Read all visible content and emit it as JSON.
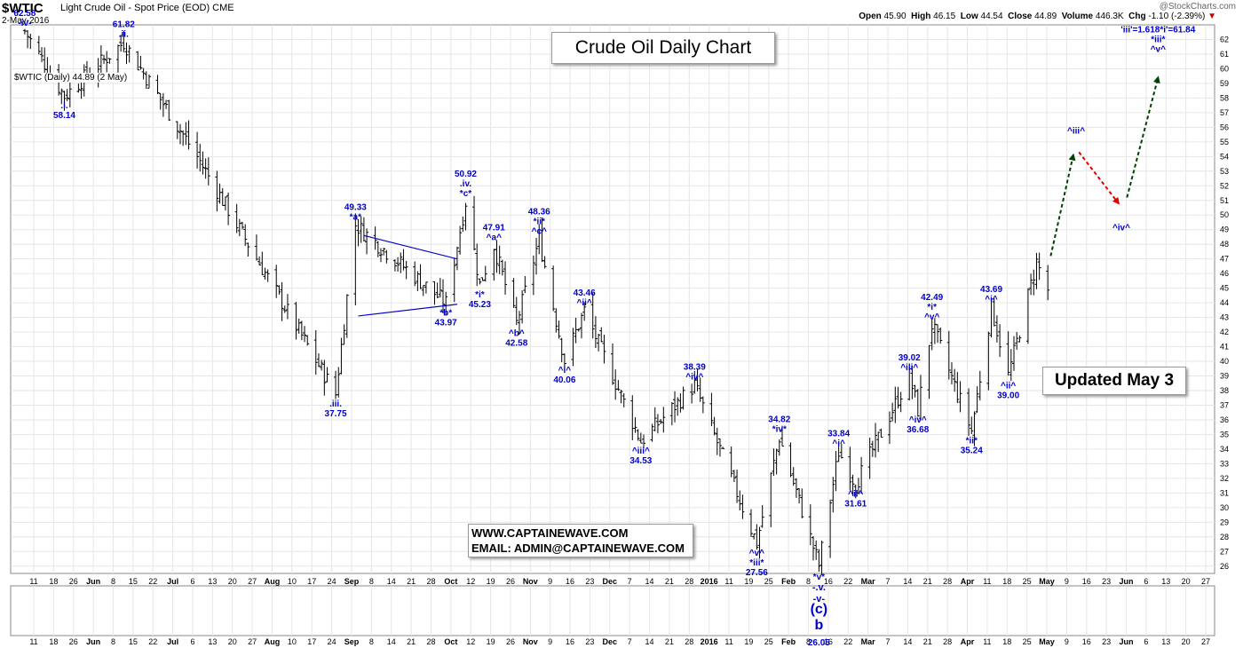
{
  "header": {
    "symbol": "$WTIC",
    "description": "Light Crude Oil - Spot Price (EOD)  CME",
    "date": "2-May-2016",
    "open_label": "Open",
    "open": "45.90",
    "high_label": "High",
    "high": "46.15",
    "low_label": "Low",
    "low": "44.54",
    "close_label": "Close",
    "close": "44.89",
    "volume_label": "Volume",
    "volume": "446.3K",
    "chg_label": "Chg",
    "chg": "-1.10 (-2.39%)",
    "watermark": "@StockCharts.com",
    "legend": "$WTIC (Daily) 44.89 (2 May)"
  },
  "boxes": {
    "title": "Crude Oil Daily Chart",
    "updated": "Updated May 3",
    "website": "WWW.CAPTAINEWAVE.COM",
    "email": "EMAIL: ADMIN@CAPTAINEWAVE.COM"
  },
  "colors": {
    "bars": "#000000",
    "annotation": "#0000cc",
    "up_arrow": "#004000",
    "down_arrow": "#e00000",
    "grid": "#e6e6e6"
  },
  "chart_data": {
    "type": "ohlc",
    "title": "Crude Oil Daily Chart",
    "ylim": [
      25.5,
      63
    ],
    "y_ticks": [
      26,
      27,
      28,
      29,
      30,
      31,
      32,
      33,
      34,
      35,
      36,
      37,
      38,
      39,
      40,
      41,
      42,
      43,
      44,
      45,
      46,
      47,
      48,
      49,
      50,
      51,
      52,
      53,
      54,
      55,
      56,
      57,
      58,
      59,
      60,
      61,
      62
    ],
    "x_ticks": [
      "11",
      "18",
      "26",
      "Jun",
      "8",
      "15",
      "22",
      "Jul",
      "6",
      "13",
      "20",
      "27",
      "Aug",
      "10",
      "17",
      "24",
      "Sep",
      "8",
      "14",
      "21",
      "28",
      "Oct",
      "12",
      "19",
      "26",
      "Nov",
      "9",
      "16",
      "23",
      "Dec",
      "7",
      "14",
      "21",
      "28",
      "2016",
      "11",
      "19",
      "25",
      "Feb",
      "8",
      "16",
      "22",
      "Mar",
      "7",
      "14",
      "21",
      "28",
      "Apr",
      "11",
      "18",
      "25",
      "May",
      "9",
      "16",
      "23",
      "Jun",
      "6",
      "13",
      "20",
      "27"
    ],
    "last_bar": {
      "date": "2-May-2016",
      "open": 45.9,
      "high": 46.15,
      "low": 44.54,
      "close": 44.89
    },
    "pivots": [
      {
        "x": "2015-05-06",
        "y": 62.58
      },
      {
        "x": "2015-05-20",
        "y": 58.14
      },
      {
        "x": "2015-06-10",
        "y": 61.82
      },
      {
        "x": "2015-07-06",
        "y": 54.0
      },
      {
        "x": "2015-08-24",
        "y": 37.75
      },
      {
        "x": "2015-08-31",
        "y": 49.33
      },
      {
        "x": "2015-10-02",
        "y": 43.97
      },
      {
        "x": "2015-10-09",
        "y": 50.92
      },
      {
        "x": "2015-10-14",
        "y": 45.23
      },
      {
        "x": "2015-10-19",
        "y": 47.91
      },
      {
        "x": "2015-10-27",
        "y": 42.58
      },
      {
        "x": "2015-11-04",
        "y": 48.36
      },
      {
        "x": "2015-11-13",
        "y": 40.06
      },
      {
        "x": "2015-11-20",
        "y": 43.46
      },
      {
        "x": "2015-12-10",
        "y": 34.53
      },
      {
        "x": "2015-12-29",
        "y": 38.39
      },
      {
        "x": "2016-01-20",
        "y": 27.56
      },
      {
        "x": "2016-01-28",
        "y": 34.82
      },
      {
        "x": "2016-02-11",
        "y": 26.05
      },
      {
        "x": "2016-02-18",
        "y": 33.84
      },
      {
        "x": "2016-02-24",
        "y": 31.61
      },
      {
        "x": "2016-03-14",
        "y": 39.02
      },
      {
        "x": "2016-03-17",
        "y": 36.68
      },
      {
        "x": "2016-03-22",
        "y": 42.49
      },
      {
        "x": "2016-04-05",
        "y": 35.24
      },
      {
        "x": "2016-04-12",
        "y": 43.69
      },
      {
        "x": "2016-04-18",
        "y": 39.0
      },
      {
        "x": "2016-04-28",
        "y": 46.78
      },
      {
        "x": "2016-05-02",
        "y": 44.89
      }
    ],
    "triangle": {
      "upper": [
        {
          "x": "2015-09-03",
          "y": 48.6
        },
        {
          "x": "2015-10-06",
          "y": 47.0
        }
      ],
      "lower": [
        {
          "x": "2015-09-01",
          "y": 43.1
        },
        {
          "x": "2015-10-06",
          "y": 43.9
        }
      ]
    },
    "projection": [
      {
        "x": "2016-05-03",
        "y": 47.2
      },
      {
        "x": "2016-05-11",
        "y": 54.1
      },
      {
        "x": "2016-05-13",
        "y": 54.3
      },
      {
        "x": "2016-05-27",
        "y": 50.8
      },
      {
        "x": "2016-05-30",
        "y": 51.2
      },
      {
        "x": "2016-06-10",
        "y": 59.4
      }
    ],
    "annotations": [
      {
        "x": "2015-05-06",
        "y": 62.58,
        "lines": [
          "62.58",
          "-iv-"
        ],
        "pos": "above"
      },
      {
        "x": "2015-05-20",
        "y": 58.14,
        "lines": [
          ".i.",
          "58.14"
        ],
        "pos": "below"
      },
      {
        "x": "2015-06-10",
        "y": 61.82,
        "lines": [
          "61.82",
          ".ii."
        ],
        "pos": "above"
      },
      {
        "x": "2015-08-24",
        "y": 37.75,
        "lines": [
          ".iii.",
          "37.75"
        ],
        "pos": "below"
      },
      {
        "x": "2015-08-31",
        "y": 49.33,
        "lines": [
          "49.33",
          "*a*"
        ],
        "pos": "above"
      },
      {
        "x": "2015-10-02",
        "y": 43.97,
        "lines": [
          "*b*",
          "43.97"
        ],
        "pos": "below"
      },
      {
        "x": "2015-10-09",
        "y": 50.92,
        "lines": [
          "50.92",
          ".iv.",
          "*c*"
        ],
        "pos": "above"
      },
      {
        "x": "2015-10-14",
        "y": 45.23,
        "lines": [
          "*i*",
          "45.23"
        ],
        "pos": "below"
      },
      {
        "x": "2015-10-19",
        "y": 47.91,
        "lines": [
          "47.91",
          "^a^"
        ],
        "pos": "above"
      },
      {
        "x": "2015-10-27",
        "y": 42.58,
        "lines": [
          "^b^",
          "42.58"
        ],
        "pos": "below"
      },
      {
        "x": "2015-11-04",
        "y": 48.36,
        "lines": [
          "48.36",
          "*ii*",
          "^c^"
        ],
        "pos": "above"
      },
      {
        "x": "2015-11-13",
        "y": 40.06,
        "lines": [
          "^i^",
          "40.06"
        ],
        "pos": "below"
      },
      {
        "x": "2015-11-20",
        "y": 43.46,
        "lines": [
          "43.46",
          "^ii^"
        ],
        "pos": "above"
      },
      {
        "x": "2015-12-10",
        "y": 34.53,
        "lines": [
          "^iii^",
          "34.53"
        ],
        "pos": "below"
      },
      {
        "x": "2015-12-29",
        "y": 38.39,
        "lines": [
          "38.39",
          "^iv^"
        ],
        "pos": "above"
      },
      {
        "x": "2016-01-20",
        "y": 27.56,
        "lines": [
          "^v^",
          "*iii*",
          "27.56"
        ],
        "pos": "below"
      },
      {
        "x": "2016-01-28",
        "y": 34.82,
        "lines": [
          "34.82",
          "*iv*"
        ],
        "pos": "above"
      },
      {
        "x": "2016-02-18",
        "y": 33.84,
        "lines": [
          "33.84",
          "^i^"
        ],
        "pos": "above"
      },
      {
        "x": "2016-02-24",
        "y": 31.61,
        "lines": [
          "^ii^",
          "31.61"
        ],
        "pos": "below"
      },
      {
        "x": "2016-03-14",
        "y": 39.02,
        "lines": [
          "39.02",
          "^iii^"
        ],
        "pos": "above"
      },
      {
        "x": "2016-03-17",
        "y": 36.68,
        "lines": [
          "^iv^",
          "36.68"
        ],
        "pos": "below"
      },
      {
        "x": "2016-03-22",
        "y": 42.49,
        "lines": [
          "42.49",
          "*i*",
          "^v^"
        ],
        "pos": "above"
      },
      {
        "x": "2016-04-05",
        "y": 35.24,
        "lines": [
          "*ii*",
          "35.24"
        ],
        "pos": "below"
      },
      {
        "x": "2016-04-12",
        "y": 43.69,
        "lines": [
          "43.69",
          "^i^"
        ],
        "pos": "above"
      },
      {
        "x": "2016-04-18",
        "y": 39.0,
        "lines": [
          "^ii^",
          "39.00"
        ],
        "pos": "below"
      },
      {
        "x": "2016-05-12",
        "y": 55.2,
        "lines": [
          "^iii^"
        ],
        "pos": "above"
      },
      {
        "x": "2016-05-28",
        "y": 49.8,
        "lines": [
          "^iv^"
        ],
        "pos": "below"
      },
      {
        "x": "2016-06-10",
        "y": 60.8,
        "lines": [
          "'iii'=1.618*i'=61.84",
          "*iii*",
          "^v^"
        ],
        "pos": "above"
      }
    ],
    "wave_b_label": {
      "x": "2016-02-11",
      "lines": [
        "*v*",
        "-.v.",
        "-v-",
        "(c)",
        "b",
        "26.05"
      ]
    }
  }
}
